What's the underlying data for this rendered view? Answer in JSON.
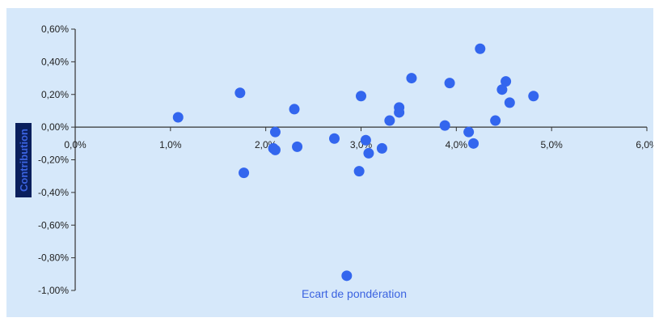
{
  "chart_data": {
    "type": "scatter",
    "title": "",
    "xlabel": "Ecart de pondération",
    "ylabel": "Contribution",
    "xlim": [
      0,
      6
    ],
    "ylim": [
      -1.0,
      0.6
    ],
    "x_ticks": [
      "0,0%",
      "1,0%",
      "2,0%",
      "3,0%",
      "4,0%",
      "5,0%",
      "6,0%"
    ],
    "y_ticks": [
      "0,60%",
      "0,40%",
      "0,20%",
      "0,00%",
      "-0,20%",
      "-0,40%",
      "-0,60%",
      "-0,80%",
      "-1,00%"
    ],
    "grid": false,
    "legend": "none",
    "colors": {
      "marker": "#3366ee",
      "background": "#d6e8fa",
      "axis": "#333333",
      "ytitle_bg": "#0a1f5c"
    },
    "series": [
      {
        "x": [
          1.08,
          1.73,
          1.77,
          2.08,
          2.1,
          2.1,
          2.3,
          2.33,
          2.72,
          2.85,
          2.98,
          3.0,
          3.05,
          3.08,
          3.22,
          3.3,
          3.4,
          3.4,
          3.53,
          3.88,
          3.93,
          4.13,
          4.18,
          4.25,
          4.41,
          4.48,
          4.52,
          4.56,
          4.81
        ],
        "y": [
          0.06,
          0.21,
          -0.28,
          -0.13,
          -0.14,
          -0.03,
          0.11,
          -0.12,
          -0.07,
          -0.91,
          -0.27,
          0.19,
          -0.08,
          -0.16,
          -0.13,
          0.04,
          0.09,
          0.12,
          0.3,
          0.01,
          0.27,
          -0.03,
          -0.1,
          0.48,
          0.04,
          0.23,
          0.28,
          0.15,
          0.19
        ]
      }
    ]
  }
}
